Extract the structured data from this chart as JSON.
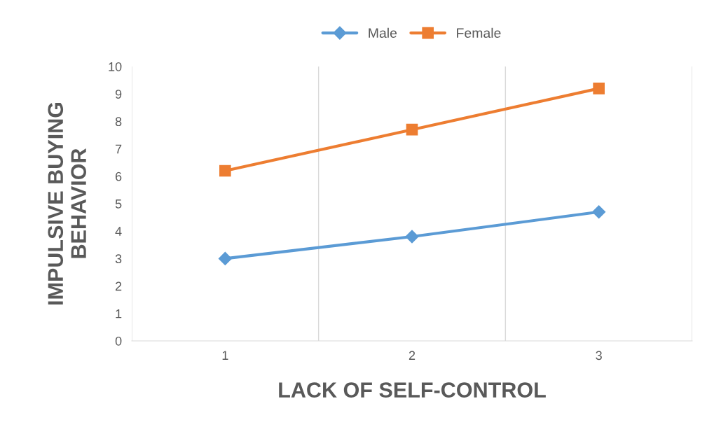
{
  "chart_data": {
    "type": "line",
    "xlabel": "LACK OF SELF-CONTROL",
    "ylabel": "IMPULSIVE BUYING\nBEHAVIOR",
    "categories": [
      "1",
      "2",
      "3"
    ],
    "series": [
      {
        "name": "Male",
        "color": "#5b9bd5",
        "values": [
          3.0,
          3.8,
          4.7
        ],
        "marker": "diamond"
      },
      {
        "name": "Female",
        "color": "#ed7d31",
        "values": [
          6.2,
          7.7,
          9.2
        ],
        "marker": "square"
      }
    ],
    "ylim": [
      0,
      10
    ],
    "yticks": [
      0,
      1,
      2,
      3,
      4,
      5,
      6,
      7,
      8,
      9,
      10
    ],
    "grid": "x",
    "legend": "top",
    "line_style": "solid"
  }
}
